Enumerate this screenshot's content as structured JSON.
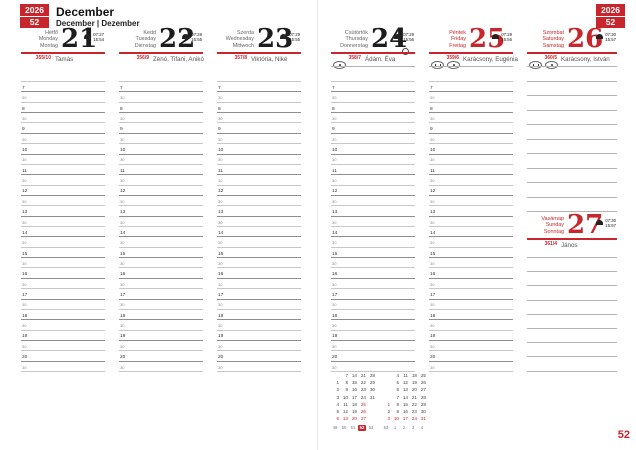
{
  "header": {
    "year": "2026",
    "week": "52",
    "title": "December",
    "subtitle": "December | Dezember"
  },
  "footer": {
    "page_number": "52"
  },
  "colors": {
    "accent_red": "#c8262c"
  },
  "grid": {
    "hours": [
      "7",
      "8",
      "9",
      "10",
      "11",
      "12",
      "13",
      "14",
      "15",
      "16",
      "17",
      "18",
      "19",
      "20"
    ],
    "half_label": "30"
  },
  "days": [
    {
      "page": "left",
      "col": 0,
      "weekday": [
        "Hétfő",
        "Monday",
        "Montag"
      ],
      "number": "21",
      "sunrise": "07:27",
      "sunset": "15:54",
      "day_of_year": "355/10",
      "name_day": "Tamás",
      "red": false,
      "badges": [],
      "moon": false
    },
    {
      "page": "left",
      "col": 1,
      "weekday": [
        "Kedd",
        "Tuesday",
        "Dienstag"
      ],
      "number": "22",
      "sunrise": "07:28",
      "sunset": "15:55",
      "day_of_year": "356/9",
      "name_day": "Zénó, Tifani, Anikó",
      "red": false,
      "badges": [],
      "moon": false
    },
    {
      "page": "left",
      "col": 2,
      "weekday": [
        "Szerda",
        "Wednesday",
        "Mittwoch"
      ],
      "number": "23",
      "sunrise": "07:29",
      "sunset": "15:55",
      "day_of_year": "357/8",
      "name_day": "Viktória, Niké",
      "red": false,
      "badges": [],
      "moon": false
    },
    {
      "page": "right",
      "col": 0,
      "weekday": [
        "Csütörtök",
        "Thursday",
        "Donnerstag"
      ],
      "number": "24",
      "sunrise": "07:29",
      "sunset": "15:56",
      "day_of_year": "358/7",
      "name_day": "Ádám, Éva",
      "red": false,
      "badges": [
        "dot"
      ],
      "moon": true
    },
    {
      "page": "right",
      "col": 1,
      "weekday": [
        "Péntek",
        "Friday",
        "Freitag"
      ],
      "number": "25",
      "sunrise": "07:29",
      "sunset": "15:56",
      "day_of_year": "359/6",
      "name_day": "Karácsony, Eugénia",
      "red": true,
      "badges": [
        "mark",
        "dot"
      ],
      "moon": false
    },
    {
      "page": "right",
      "col": 2,
      "weekday": [
        "Szombat",
        "Saturday",
        "Samstag"
      ],
      "number": "26",
      "sunrise": "07:30",
      "sunset": "15:57",
      "day_of_year": "360/5",
      "name_day": "Karácsony, István",
      "red": true,
      "badges": [
        "mark",
        "dot"
      ],
      "moon": false
    },
    {
      "page": "right",
      "col": 2,
      "sunday": true,
      "weekday": [
        "Vasárnap",
        "Sunday",
        "Sonntag"
      ],
      "number": "27",
      "sunrise": "07:30",
      "sunset": "15:57",
      "day_of_year": "361/4",
      "name_day": "János",
      "red": true,
      "badges": [],
      "moon": false
    }
  ],
  "mini_calendar": {
    "months": [
      {
        "rows": [
          [
            "",
            "7",
            "14",
            "21",
            "28"
          ],
          [
            "1",
            "8",
            "15",
            "22",
            "29"
          ],
          [
            "2",
            "9",
            "16",
            "23",
            "30"
          ],
          [
            "3",
            "10",
            "17",
            "24",
            "31"
          ],
          [
            "4",
            "11",
            "18",
            "25",
            ""
          ],
          [
            "5",
            "12",
            "19",
            "26",
            ""
          ],
          [
            "6",
            "13",
            "20",
            "27",
            ""
          ]
        ],
        "red_days": [
          "6",
          "13",
          "20",
          "25",
          "26",
          "27"
        ],
        "weeks": [
          "49",
          "50",
          "51",
          "52",
          "53"
        ]
      },
      {
        "rows": [
          [
            "",
            "4",
            "11",
            "18",
            "25"
          ],
          [
            "",
            "5",
            "12",
            "19",
            "26"
          ],
          [
            "",
            "6",
            "13",
            "20",
            "27"
          ],
          [
            "",
            "7",
            "14",
            "21",
            "28"
          ],
          [
            "1",
            "8",
            "15",
            "22",
            "29"
          ],
          [
            "2",
            "9",
            "16",
            "23",
            "30"
          ],
          [
            "3",
            "10",
            "17",
            "24",
            "31"
          ]
        ],
        "red_days": [
          "1",
          "3",
          "10",
          "17",
          "24",
          "31"
        ],
        "weeks": [
          "53",
          "1",
          "2",
          "3",
          "4"
        ]
      }
    ],
    "highlight_week": "52"
  }
}
